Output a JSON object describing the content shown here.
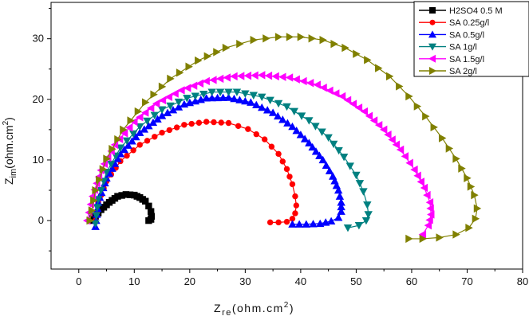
{
  "chart_data": {
    "type": "line",
    "xlim": [
      -5,
      80
    ],
    "ylim": [
      -8,
      36
    ],
    "x_ticks": [
      0,
      10,
      20,
      30,
      40,
      50,
      60,
      70,
      80
    ],
    "y_ticks": [
      0,
      10,
      20,
      30
    ],
    "xlabel": {
      "main": "Z",
      "sub": "re",
      "unit_pre": "(ohm.cm",
      "sup": "2",
      "unit_post": ")"
    },
    "ylabel": {
      "main": "Z",
      "sub": "im",
      "unit_pre": "(ohm.cm",
      "sup": "2",
      "unit_post": ")"
    },
    "legend_position": "top-right",
    "series": [
      {
        "name": "H2SO4 0.5 M",
        "marker": "square",
        "color": "#000000",
        "x": [
          2.0,
          3.0,
          4.0,
          5.5,
          7.0,
          8.5,
          10.0,
          11.0,
          12.0,
          12.6,
          13.0,
          13.1,
          13.0,
          12.6
        ],
        "y": [
          0.0,
          0.7,
          1.8,
          3.0,
          4.0,
          4.3,
          4.2,
          3.8,
          3.2,
          2.4,
          1.5,
          0.7,
          0.2,
          0.0
        ]
      },
      {
        "name": "SA 0.25g/l",
        "marker": "circle",
        "color": "#ff0000",
        "x": [
          3.0,
          3.5,
          5.0,
          7.5,
          11.0,
          15.0,
          19.0,
          23.0,
          27.0,
          30.5,
          33.5,
          36.0,
          37.5,
          38.5,
          39.0,
          39.2,
          39.0,
          38.5,
          37.5,
          36.0,
          34.5
        ],
        "y": [
          0.0,
          3.0,
          6.5,
          9.8,
          12.5,
          14.5,
          15.8,
          16.3,
          16.1,
          15.1,
          13.4,
          11.0,
          8.5,
          6.0,
          4.0,
          2.5,
          1.2,
          0.3,
          -0.2,
          -0.3,
          -0.3
        ],
        "step": 0
      },
      {
        "name": "SA 0.5g/l",
        "marker": "triangle-up",
        "color": "#0000ff",
        "x": [
          3.0,
          3.5,
          5.0,
          7.5,
          11.0,
          15.0,
          19.0,
          23.0,
          27.0,
          31.0,
          35.0,
          38.5,
          41.5,
          44.0,
          45.8,
          46.8,
          47.3,
          47.3,
          46.8,
          45.5,
          43.5,
          41.0,
          38.5
        ],
        "y": [
          -1.0,
          3.0,
          7.0,
          11.0,
          14.5,
          17.3,
          19.2,
          20.2,
          20.3,
          19.5,
          17.8,
          15.5,
          12.8,
          10.0,
          7.3,
          5.0,
          3.0,
          1.5,
          0.5,
          -0.1,
          -0.5,
          -0.6,
          -0.6
        ]
      },
      {
        "name": "SA 1g/l",
        "marker": "triangle-down",
        "color": "#008080",
        "x": [
          3.0,
          3.5,
          5.0,
          7.5,
          11.0,
          15.0,
          19.5,
          24.0,
          28.5,
          33.0,
          37.5,
          41.5,
          45.0,
          47.8,
          50.0,
          51.3,
          52.0,
          52.2,
          51.8,
          50.5,
          48.5
        ],
        "y": [
          -0.5,
          3.5,
          8.0,
          12.0,
          15.5,
          18.3,
          20.2,
          21.2,
          21.2,
          20.4,
          18.8,
          16.5,
          13.7,
          10.5,
          7.5,
          4.8,
          2.6,
          1.0,
          0.0,
          -0.8,
          -1.2
        ]
      },
      {
        "name": "SA 1.5g/l",
        "marker": "triangle-left",
        "color": "#ff00ff",
        "x": [
          1.5,
          2.5,
          4.0,
          6.5,
          10.0,
          14.0,
          18.5,
          23.0,
          28.0,
          33.0,
          38.0,
          43.0,
          47.5,
          51.5,
          55.0,
          58.0,
          60.5,
          62.3,
          63.3,
          63.5,
          63.0,
          62.0
        ],
        "y": [
          0.0,
          4.0,
          8.3,
          12.5,
          16.3,
          19.3,
          21.5,
          23.0,
          23.8,
          24.0,
          23.6,
          22.4,
          20.5,
          18.0,
          15.0,
          11.7,
          8.4,
          5.4,
          3.0,
          1.0,
          -0.8,
          -2.3
        ]
      },
      {
        "name": "SA 2g/l",
        "marker": "triangle-right",
        "color": "#808000",
        "x": [
          2.0,
          3.0,
          5.0,
          8.0,
          12.0,
          16.5,
          21.5,
          26.5,
          31.5,
          36.0,
          40.0,
          44.0,
          48.0,
          52.0,
          56.0,
          59.5,
          62.5,
          65.5,
          68.0,
          70.0,
          71.3,
          71.8,
          71.5,
          70.3,
          68.0,
          65.0,
          62.0,
          59.5
        ],
        "y": [
          0.0,
          5.0,
          10.2,
          15.0,
          19.5,
          23.4,
          26.4,
          28.5,
          29.8,
          30.3,
          30.3,
          29.8,
          28.5,
          26.5,
          23.8,
          20.5,
          17.2,
          13.6,
          10.2,
          7.0,
          4.2,
          2.0,
          0.3,
          -1.2,
          -2.3,
          -2.8,
          -3.0,
          -3.0
        ]
      }
    ]
  }
}
